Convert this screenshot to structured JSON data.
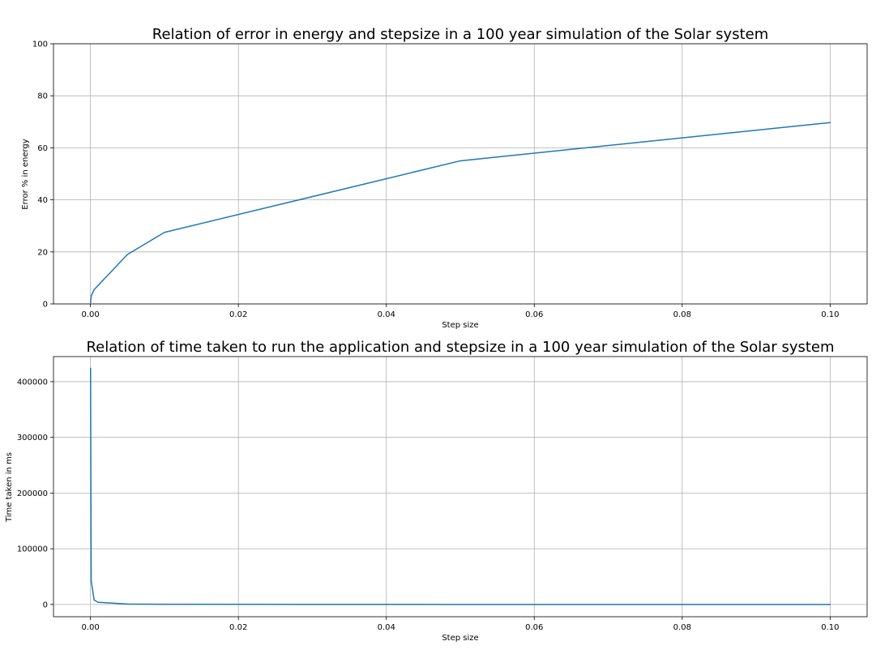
{
  "chart_data": [
    {
      "type": "line",
      "title": "Relation of error in energy and stepsize in a 100 year simulation of the Solar system",
      "xlabel": "Step size",
      "ylabel": "Error % in energy",
      "xlim": [
        -0.005,
        0.105
      ],
      "ylim": [
        0,
        100
      ],
      "x_ticks": [
        "0.00",
        "0.02",
        "0.04",
        "0.06",
        "0.08",
        "0.10"
      ],
      "x_tick_values": [
        0.0,
        0.02,
        0.04,
        0.06,
        0.08,
        0.1
      ],
      "y_ticks": [
        "0",
        "20",
        "40",
        "60",
        "80",
        "100"
      ],
      "y_tick_values": [
        0,
        20,
        40,
        60,
        80,
        100
      ],
      "grid": true,
      "color": "#1f77b4",
      "series": [
        {
          "x": [
            1e-05,
            0.0001,
            0.0005,
            0.001,
            0.005,
            0.01,
            0.05,
            0.1
          ],
          "values": [
            0.5,
            3.0,
            5.5,
            7.0,
            19.0,
            27.5,
            55.0,
            69.7
          ]
        }
      ]
    },
    {
      "type": "line",
      "title": "Relation of time taken to run the application and stepsize in a 100 year simulation of the Solar system",
      "xlabel": "Step size",
      "ylabel": "Time taken in ms",
      "xlim": [
        -0.005,
        0.105
      ],
      "ylim": [
        -22000,
        445000
      ],
      "x_ticks": [
        "0.00",
        "0.02",
        "0.04",
        "0.06",
        "0.08",
        "0.10"
      ],
      "x_tick_values": [
        0.0,
        0.02,
        0.04,
        0.06,
        0.08,
        0.1
      ],
      "y_ticks": [
        "0",
        "100000",
        "200000",
        "300000",
        "400000"
      ],
      "y_tick_values": [
        0,
        100000,
        200000,
        300000,
        400000
      ],
      "grid": true,
      "color": "#1f77b4",
      "series": [
        {
          "x": [
            1e-05,
            0.0001,
            0.0005,
            0.001,
            0.005,
            0.01,
            0.05,
            0.1
          ],
          "values": [
            424000,
            42000,
            8000,
            4000,
            800,
            400,
            80,
            40
          ]
        }
      ]
    }
  ]
}
